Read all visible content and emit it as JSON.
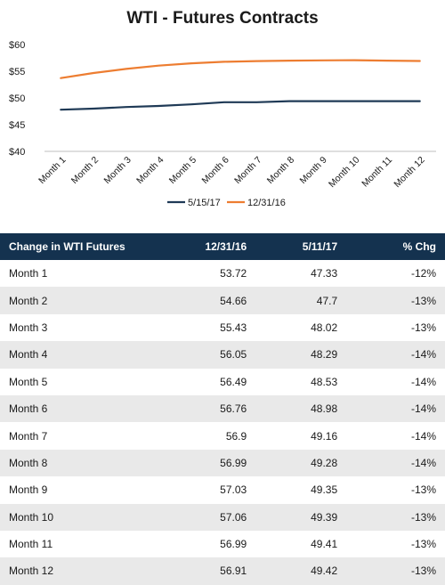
{
  "chart_data": {
    "type": "line",
    "title": "WTI - Futures Contracts",
    "categories": [
      "Month 1",
      "Month 2",
      "Month 3",
      "Month 4",
      "Month 5",
      "Month 6",
      "Month 7",
      "Month 8",
      "Month 9",
      "Month 10",
      "Month 11",
      "Month 12"
    ],
    "series": [
      {
        "name": "5/15/17",
        "color": "#1f3a56",
        "values": [
          47.8,
          48.0,
          48.3,
          48.5,
          48.8,
          49.2,
          49.2,
          49.4,
          49.4,
          49.4,
          49.4,
          49.4
        ]
      },
      {
        "name": "12/31/16",
        "color": "#ed7d31",
        "values": [
          53.72,
          54.66,
          55.43,
          56.05,
          56.49,
          56.76,
          56.9,
          56.99,
          57.03,
          57.06,
          56.99,
          56.91
        ]
      }
    ],
    "yticks": [
      "$60",
      "$55",
      "$50",
      "$45",
      "$40"
    ],
    "ylim": [
      40,
      60
    ],
    "legend": "bottom",
    "grid": false
  },
  "table": {
    "headers": [
      "Change in WTI Futures",
      "12/31/16",
      "5/11/17",
      "% Chg"
    ],
    "rows": [
      [
        "Month 1",
        "53.72",
        "47.33",
        "-12%"
      ],
      [
        "Month 2",
        "54.66",
        "47.7",
        "-13%"
      ],
      [
        "Month 3",
        "55.43",
        "48.02",
        "-13%"
      ],
      [
        "Month 4",
        "56.05",
        "48.29",
        "-14%"
      ],
      [
        "Month 5",
        "56.49",
        "48.53",
        "-14%"
      ],
      [
        "Month 6",
        "56.76",
        "48.98",
        "-14%"
      ],
      [
        "Month 7",
        "56.9",
        "49.16",
        "-14%"
      ],
      [
        "Month 8",
        "56.99",
        "49.28",
        "-14%"
      ],
      [
        "Month 9",
        "57.03",
        "49.35",
        "-13%"
      ],
      [
        "Month 10",
        "57.06",
        "49.39",
        "-13%"
      ],
      [
        "Month 11",
        "56.99",
        "49.41",
        "-13%"
      ],
      [
        "Month 12",
        "56.91",
        "49.42",
        "-13%"
      ]
    ]
  }
}
